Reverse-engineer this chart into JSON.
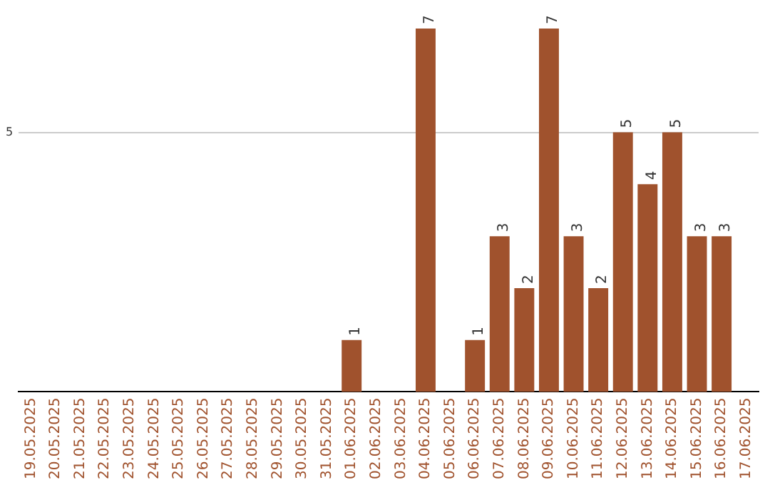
{
  "chart_data": {
    "type": "bar",
    "categories": [
      "19.05.2025",
      "20.05.2025",
      "21.05.2025",
      "22.05.2025",
      "23.05.2025",
      "24.05.2025",
      "25.05.2025",
      "26.05.2025",
      "27.05.2025",
      "28.05.2025",
      "29.05.2025",
      "30.05.2025",
      "31.05.2025",
      "01.06.2025",
      "02.06.2025",
      "03.06.2025",
      "04.06.2025",
      "05.06.2025",
      "06.06.2025",
      "07.06.2025",
      "08.06.2025",
      "09.06.2025",
      "10.06.2025",
      "11.06.2025",
      "12.06.2025",
      "13.06.2025",
      "14.06.2025",
      "15.06.2025",
      "16.06.2025",
      "17.06.2025"
    ],
    "values": [
      null,
      null,
      null,
      null,
      null,
      null,
      null,
      null,
      null,
      null,
      null,
      null,
      null,
      1,
      null,
      null,
      7,
      null,
      1,
      3,
      2,
      7,
      3,
      2,
      5,
      4,
      5,
      3,
      3,
      null
    ],
    "data_labels": true,
    "color": "#a0522d",
    "ylim": [
      0,
      7
    ],
    "yticks": [
      5
    ],
    "grid": "y",
    "legend": false
  }
}
